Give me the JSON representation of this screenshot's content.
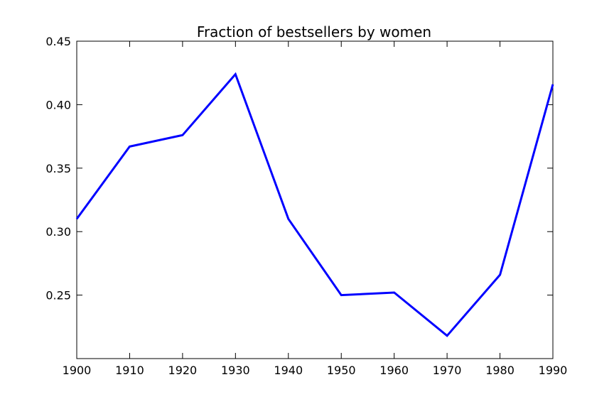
{
  "chart_data": {
    "type": "line",
    "title": "Fraction of bestsellers by women",
    "xlabel": "",
    "ylabel": "",
    "x": [
      1900,
      1910,
      1920,
      1930,
      1940,
      1950,
      1960,
      1970,
      1980,
      1990
    ],
    "series": [
      {
        "values": [
          0.31,
          0.367,
          0.376,
          0.424,
          0.31,
          0.25,
          0.252,
          0.218,
          0.266,
          0.416
        ],
        "color": "#0000ff"
      }
    ],
    "xlim": [
      1900,
      1990
    ],
    "ylim": [
      0.2,
      0.45
    ],
    "xticks": [
      "1900",
      "1910",
      "1920",
      "1930",
      "1940",
      "1950",
      "1960",
      "1970",
      "1980",
      "1990"
    ],
    "yticks": [
      "0.25",
      "0.30",
      "0.35",
      "0.40",
      "0.45"
    ],
    "grid": false,
    "legend": "none"
  }
}
